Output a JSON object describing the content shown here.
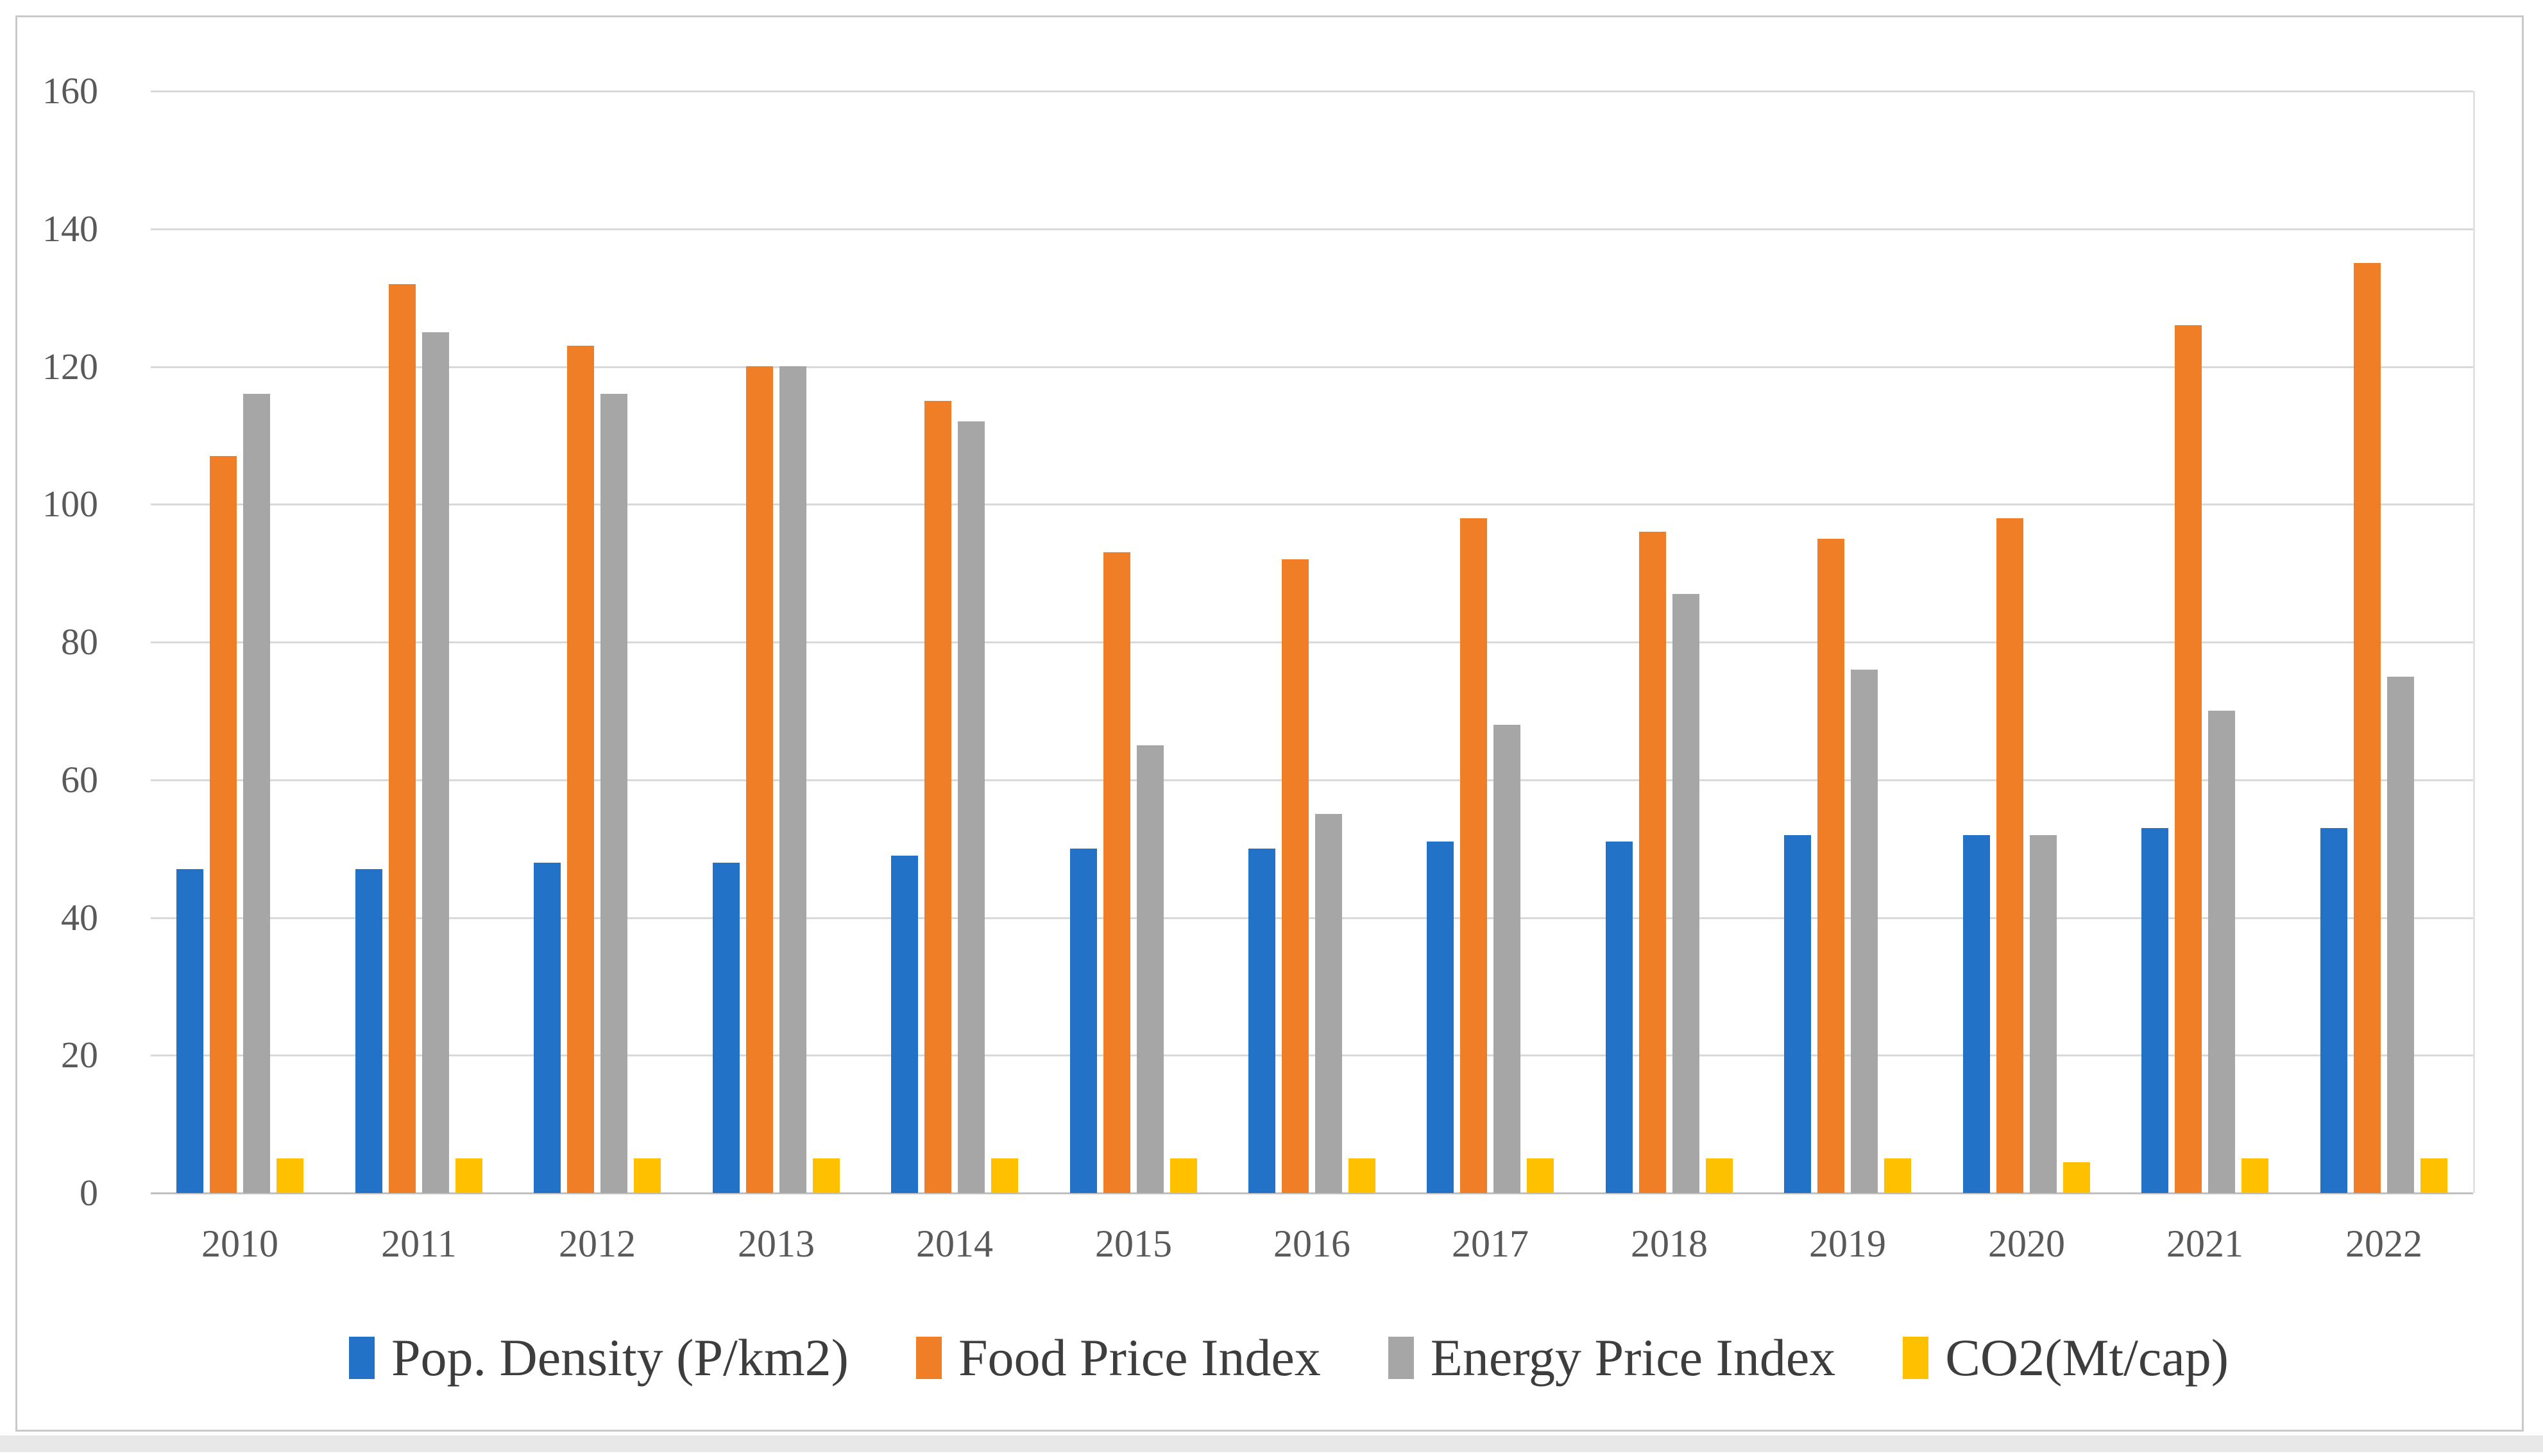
{
  "chart_data": {
    "type": "bar",
    "title": "",
    "categories": [
      "2010",
      "2011",
      "2012",
      "2013",
      "2014",
      "2015",
      "2016",
      "2017",
      "2018",
      "2019",
      "2020",
      "2021",
      "2022"
    ],
    "series": [
      {
        "name": "Pop. Density (P/km2)",
        "color": "#2272c8",
        "values": [
          47,
          47,
          48,
          48,
          49,
          50,
          50,
          51,
          51,
          52,
          52,
          53,
          53
        ]
      },
      {
        "name": "Food Price Index",
        "color": "#f07e26",
        "values": [
          107,
          132,
          123,
          120,
          115,
          93,
          92,
          98,
          96,
          95,
          98,
          126,
          135
        ]
      },
      {
        "name": "Energy Price Index",
        "color": "#a6a6a6",
        "values": [
          116,
          125,
          116,
          120,
          112,
          65,
          55,
          68,
          87,
          76,
          52,
          70,
          75
        ]
      },
      {
        "name": "CO2(Mt/cap)",
        "color": "#ffc000",
        "values": [
          5,
          5,
          5,
          5,
          5,
          5,
          5,
          5,
          5,
          5,
          4.5,
          5,
          5
        ]
      }
    ],
    "ylabel": "",
    "xlabel": "",
    "ylim": [
      0,
      160
    ],
    "y_ticks": [
      "0",
      "20",
      "40",
      "60",
      "80",
      "100",
      "120",
      "140",
      "160"
    ],
    "grid": "horizontal",
    "legend_position": "bottom",
    "colors": {
      "gridline": "#d9d9d9",
      "axis_line": "#c0c0c0",
      "tick_text": "#595959",
      "legend_text": "#3d3d3d",
      "frame_border": "#c9c9c9",
      "background": "#ffffff"
    }
  }
}
